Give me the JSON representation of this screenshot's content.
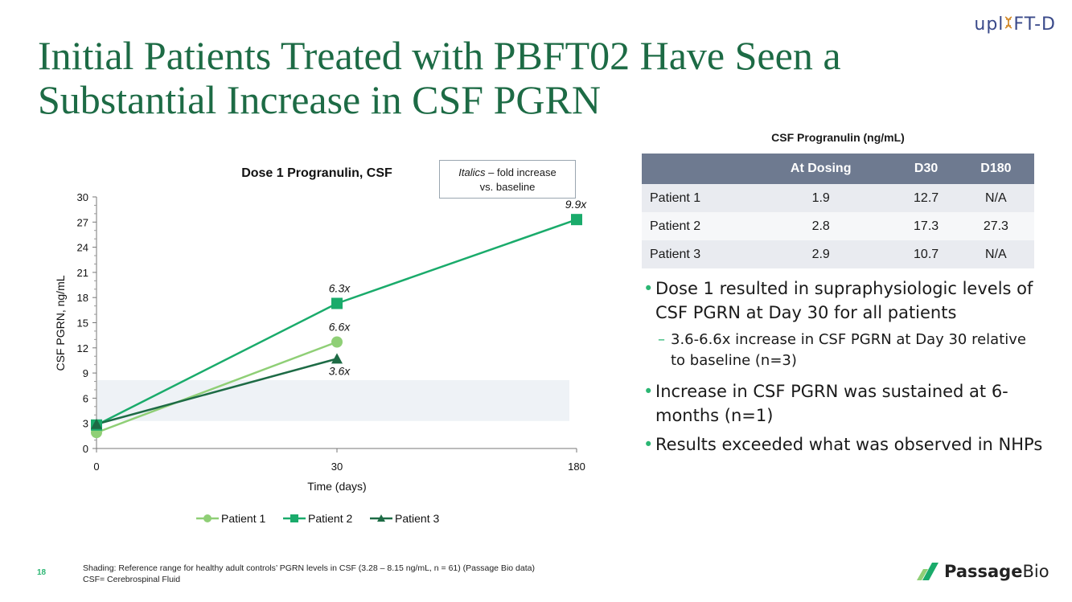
{
  "header": {
    "title_line1": "Initial Patients Treated with PBFT02 Have Seen a",
    "title_line2": "Substantial Increase in CSF PGRN",
    "brand": {
      "part1": "upl",
      "helix": "ʹ",
      "part2": "FT-D"
    }
  },
  "note_box": {
    "italic": "Italics",
    "rest": " – fold increase",
    "line2": "vs. baseline"
  },
  "chart_data": {
    "type": "line",
    "title": "Dose 1 Progranulin, CSF",
    "xlabel": "Time (days)",
    "ylabel": "CSF PGRN, ng/mL",
    "categories": [
      "0",
      "30",
      "180"
    ],
    "ylim": [
      0,
      30
    ],
    "yticks": [
      0,
      3,
      6,
      9,
      12,
      15,
      18,
      21,
      24,
      27,
      30
    ],
    "reference_band": [
      3.28,
      8.15
    ],
    "series": [
      {
        "name": "Patient 1",
        "values": [
          1.9,
          12.7,
          null
        ],
        "marker": "circle",
        "color": "#8fcf76",
        "annotations": [
          null,
          "6.6x",
          null
        ]
      },
      {
        "name": "Patient 2",
        "values": [
          2.8,
          17.3,
          27.3
        ],
        "marker": "square",
        "color": "#1aab6b",
        "annotations": [
          null,
          "6.3x",
          "9.9x"
        ]
      },
      {
        "name": "Patient 3",
        "values": [
          2.9,
          10.7,
          null
        ],
        "marker": "triangle",
        "color": "#1d6b45",
        "annotations": [
          null,
          "3.6x",
          null
        ]
      }
    ]
  },
  "table": {
    "caption": "CSF Progranulin (ng/mL)",
    "headers": [
      "",
      "At Dosing",
      "D30",
      "D180"
    ],
    "rows": [
      [
        "Patient 1",
        "1.9",
        "12.7",
        "N/A"
      ],
      [
        "Patient 2",
        "2.8",
        "17.3",
        "27.3"
      ],
      [
        "Patient 3",
        "2.9",
        "10.7",
        "N/A"
      ]
    ]
  },
  "bullets": {
    "b1": "Dose 1 resulted in supraphysiologic levels of CSF PGRN at Day 30 for all patients",
    "b1_sub": "3.6-6.6x increase in CSF PGRN at Day 30 relative to baseline (n=3)",
    "b2": "Increase in CSF PGRN was sustained at 6-months (n=1)",
    "b3": "Results exceeded what was observed in NHPs"
  },
  "footer": {
    "page_number": "18",
    "footnote1": "Shading: Reference range for healthy adult controls’ PGRN levels in CSF (3.28 – 8.15 ng/mL, n = 61)  (Passage Bio data)",
    "footnote2": "CSF= Cerebrospinal Fluid",
    "logo_bold": "Passage",
    "logo_light": "Bio"
  }
}
